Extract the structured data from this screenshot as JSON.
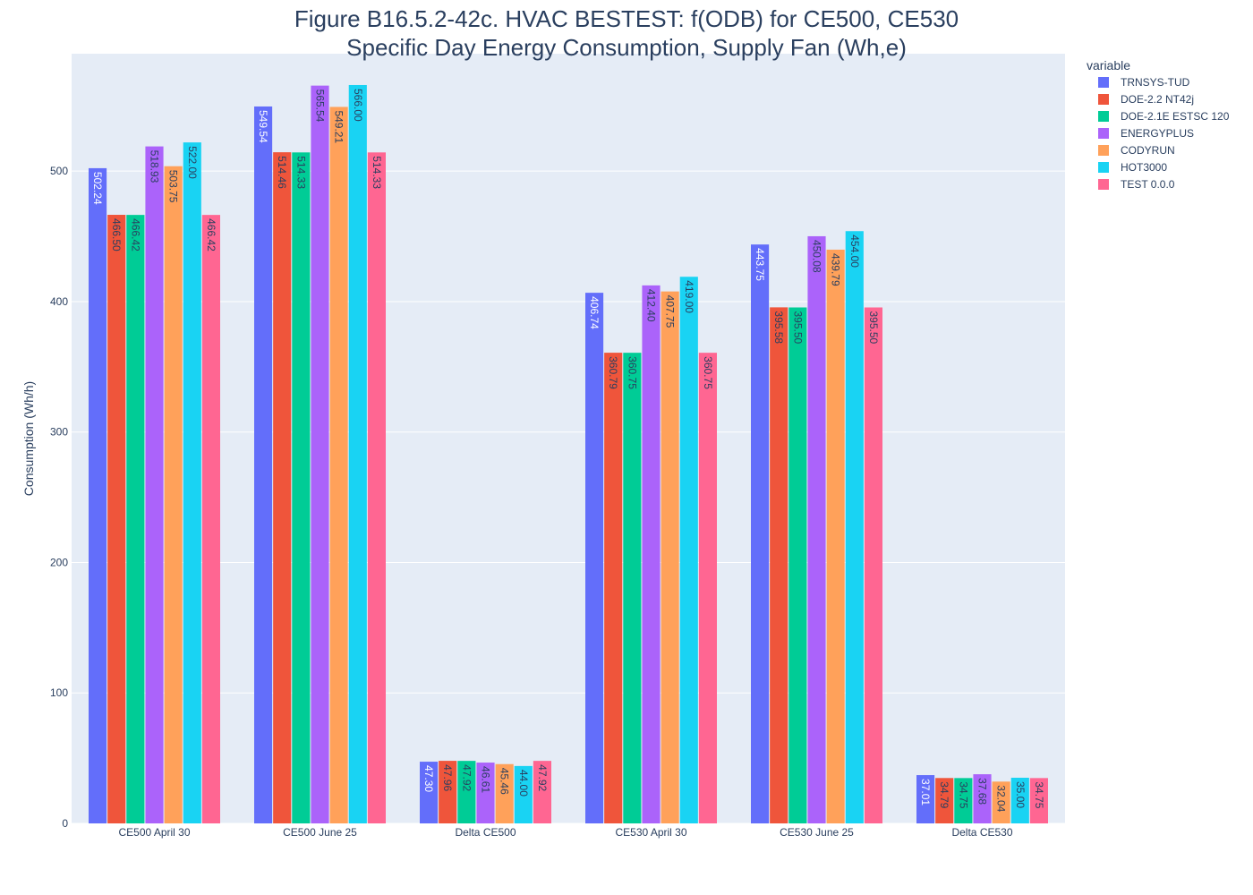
{
  "chart_data": {
    "type": "bar",
    "title_line1": "Figure B16.5.2-42c. HVAC BESTEST: f(ODB) for CE500, CE530",
    "title_line2": "Specific Day Energy Consumption, Supply Fan (Wh,e)",
    "xlabel": "",
    "ylabel": "Consumption (Wh/h)",
    "ylim": [
      0,
      590
    ],
    "yticks": [
      0,
      100,
      200,
      300,
      400,
      500
    ],
    "grid": true,
    "legend_title": "variable",
    "legend_position": "top-right",
    "categories": [
      "CE500 April 30",
      "CE500 June 25",
      "Delta CE500",
      "CE530 April 30",
      "CE530 June 25",
      "Delta CE530"
    ],
    "series": [
      {
        "name": "TRNSYS-TUD",
        "color": "#636efa",
        "label_color": "#ffffff",
        "values": [
          502.24,
          549.54,
          47.3,
          406.74,
          443.75,
          37.01
        ]
      },
      {
        "name": "DOE-2.2 NT42j",
        "color": "#ef553b",
        "label_color": "#2a3f5f",
        "values": [
          466.5,
          514.46,
          47.96,
          360.79,
          395.58,
          34.79
        ]
      },
      {
        "name": "DOE-2.1E ESTSC 120",
        "color": "#00cc96",
        "label_color": "#2a3f5f",
        "values": [
          466.42,
          514.33,
          47.92,
          360.75,
          395.5,
          34.75
        ]
      },
      {
        "name": "ENERGYPLUS",
        "color": "#ab63fa",
        "label_color": "#2a3f5f",
        "values": [
          518.93,
          565.54,
          46.61,
          412.4,
          450.08,
          37.68
        ]
      },
      {
        "name": "CODYRUN",
        "color": "#ffa15a",
        "label_color": "#2a3f5f",
        "values": [
          503.75,
          549.21,
          45.46,
          407.75,
          439.79,
          32.04
        ]
      },
      {
        "name": "HOT3000",
        "color": "#19d3f3",
        "label_color": "#2a3f5f",
        "values": [
          522.0,
          566.0,
          44.0,
          419.0,
          454.0,
          35.0
        ]
      },
      {
        "name": "TEST 0.0.0",
        "color": "#ff6692",
        "label_color": "#2a3f5f",
        "values": [
          466.42,
          514.33,
          47.92,
          360.75,
          395.5,
          34.75
        ]
      }
    ],
    "colors": {
      "plot_background": "#e5ecf6",
      "grid": "#ffffff",
      "text": "#2a3f5f"
    }
  }
}
